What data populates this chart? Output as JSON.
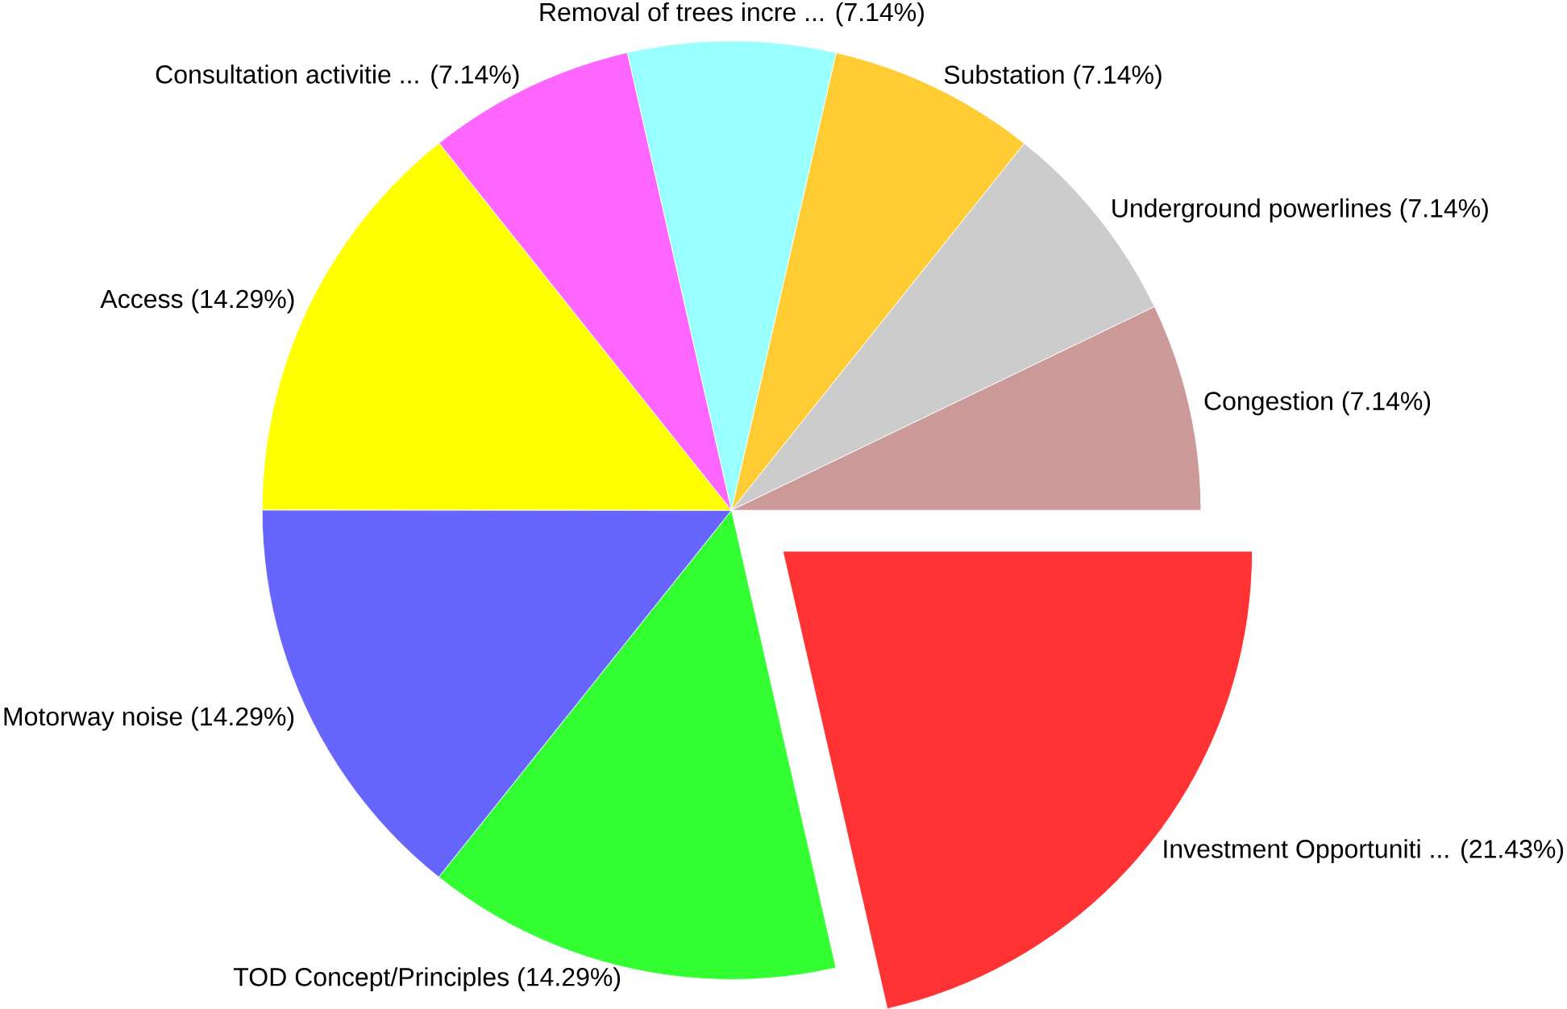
{
  "chart_data": {
    "type": "pie",
    "categories": [
      "Investment Opportuniti ...",
      "TOD Concept/Principles",
      "Motorway noise",
      "Access",
      "Consultation activitie ...",
      "Removal of trees incre ...",
      "Substation",
      "Underground powerlines",
      "Congestion"
    ],
    "values": [
      21.43,
      14.29,
      14.29,
      14.29,
      7.14,
      7.14,
      7.14,
      7.14,
      7.14
    ],
    "value_labels": [
      "(21.43%)",
      "(14.29%)",
      "(14.29%)",
      "(14.29%)",
      "(7.14%)",
      "(7.14%)",
      "(7.14%)",
      "(7.14%)",
      "(7.14%)"
    ],
    "colors": [
      "#ff3333",
      "#33ff33",
      "#6666ff",
      "#ffff00",
      "#ff66ff",
      "#99ffff",
      "#ffcc33",
      "#cccccc",
      "#cc9999"
    ]
  }
}
